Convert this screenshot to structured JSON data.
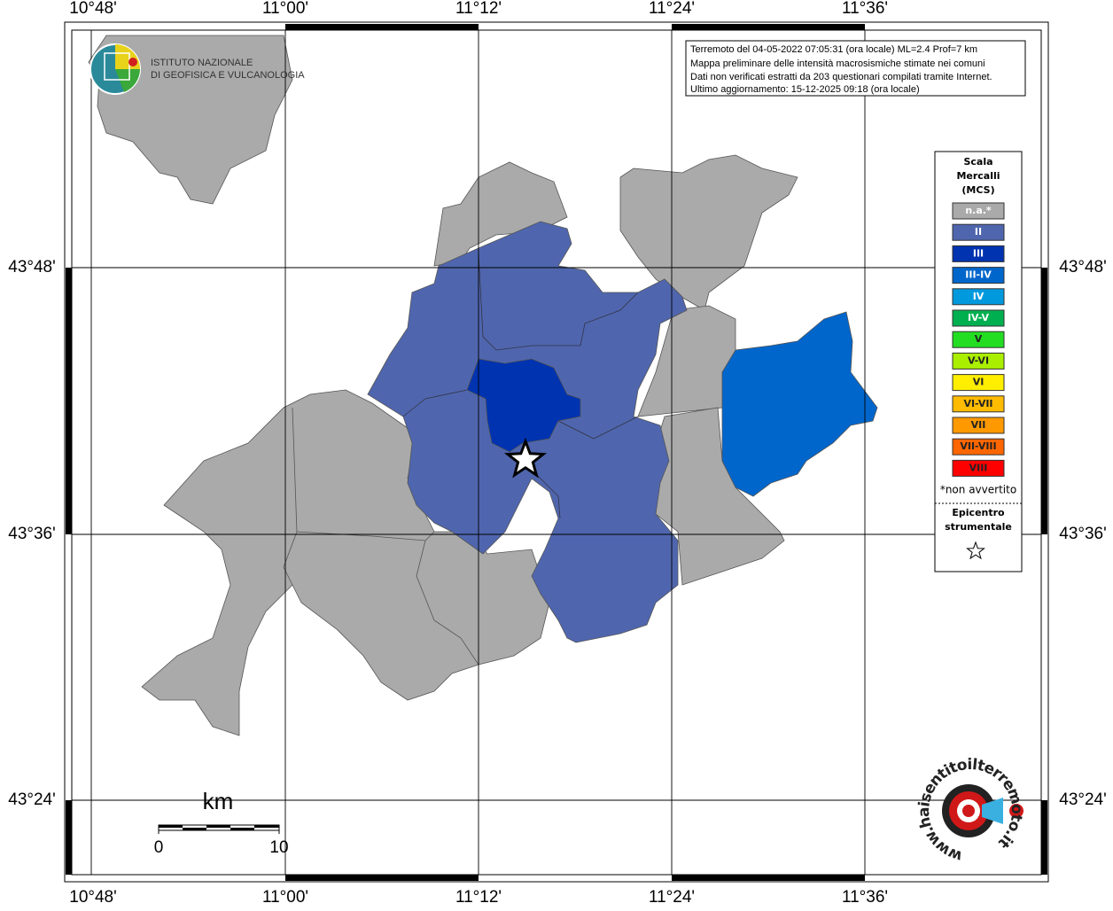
{
  "header": {
    "logo_lines": [
      "ISTITUTO NAZIONALE",
      "DI GEOFISICA E VULCANOLOGIA"
    ]
  },
  "info_box": {
    "lines": [
      "Terremoto del 04-05-2022 07:05:31 (ora locale) ML=2.4 Prof=7 km",
      "Mappa preliminare delle intensità macrosismiche stimate nei comuni",
      "Dati non verificati estratti da 203 questionari compilati tramite Internet.",
      "Ultimo aggiornamento: 15-12-2025 09:18 (ora locale)"
    ]
  },
  "map": {
    "lon_labels": [
      "10°48'",
      "11°00'",
      "11°12'",
      "11°24'",
      "11°36'"
    ],
    "lat_labels": [
      "43°48'",
      "43°36'",
      "43°24'"
    ]
  },
  "legend": {
    "title": [
      "Scala",
      "Mercalli",
      "(MCS)"
    ],
    "items": [
      {
        "label": "n.a.*",
        "color": "#aaaaaa"
      },
      {
        "label": "II",
        "color": "#4f66ae"
      },
      {
        "label": "III",
        "color": "#0033b0"
      },
      {
        "label": "III-IV",
        "color": "#0066cc"
      },
      {
        "label": "IV",
        "color": "#0099dd"
      },
      {
        "label": "IV-V",
        "color": "#00b050"
      },
      {
        "label": "V",
        "color": "#22dd22"
      },
      {
        "label": "V-VI",
        "color": "#aaee00"
      },
      {
        "label": "VI",
        "color": "#ffee00"
      },
      {
        "label": "VI-VII",
        "color": "#ffbb00"
      },
      {
        "label": "VII",
        "color": "#ff9900"
      },
      {
        "label": "VII-VIII",
        "color": "#ff6600"
      },
      {
        "label": "VIII",
        "color": "#ff0000"
      }
    ],
    "note": "*non avvertito",
    "epicenter": [
      "Epicentro",
      "strumentale"
    ]
  },
  "scale_bar": {
    "unit": "km",
    "labels": [
      "0",
      "10"
    ]
  },
  "footer": {
    "logo_text": "www.haisentitoilterremoto.it"
  }
}
